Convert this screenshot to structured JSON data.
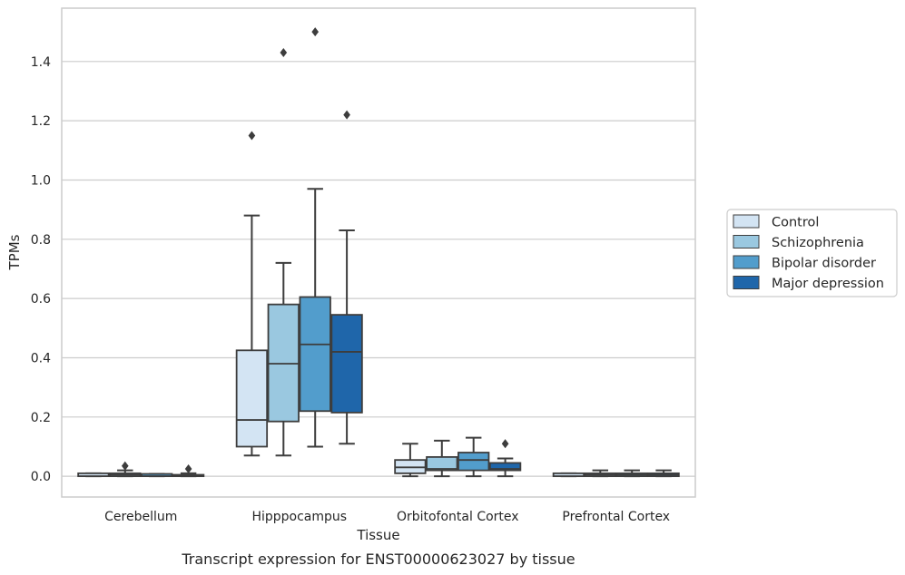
{
  "chart_data": {
    "type": "box",
    "xlabel": "Tissue",
    "ylabel": "TPMs",
    "caption": "Transcript expression for ENST00000623027 by tissue",
    "ylim": [
      -0.07,
      1.58
    ],
    "yticks": [
      0.0,
      0.2,
      0.4,
      0.6,
      0.8,
      1.0,
      1.2,
      1.4
    ],
    "ytick_labels": [
      "0.0",
      "0.2",
      "0.4",
      "0.6",
      "0.8",
      "1.0",
      "1.2",
      "1.4"
    ],
    "grid": "horizontal",
    "legend_placement": "right",
    "categories": [
      "Cerebellum",
      "Hipppocampus",
      "Orbitofontal Cortex",
      "Prefrontal Cortex"
    ],
    "series": [
      {
        "name": "Control",
        "color": "#d3e4f3",
        "boxes": [
          {
            "q1": 0.0,
            "median": 0.0,
            "q3": 0.01,
            "whislo": 0.0,
            "whishi": 0.01,
            "fliers": []
          },
          {
            "q1": 0.1,
            "median": 0.19,
            "q3": 0.425,
            "whislo": 0.07,
            "whishi": 0.88,
            "fliers": [
              1.15
            ]
          },
          {
            "q1": 0.01,
            "median": 0.03,
            "q3": 0.055,
            "whislo": 0.0,
            "whishi": 0.11,
            "fliers": []
          },
          {
            "q1": 0.0,
            "median": 0.0,
            "q3": 0.01,
            "whislo": 0.0,
            "whishi": 0.01,
            "fliers": []
          }
        ]
      },
      {
        "name": "Schizophrenia",
        "color": "#9ac8e0",
        "boxes": [
          {
            "q1": 0.0,
            "median": 0.005,
            "q3": 0.01,
            "whislo": 0.0,
            "whishi": 0.02,
            "fliers": [
              0.035
            ]
          },
          {
            "q1": 0.185,
            "median": 0.38,
            "q3": 0.58,
            "whislo": 0.07,
            "whishi": 0.72,
            "fliers": [
              1.43
            ]
          },
          {
            "q1": 0.02,
            "median": 0.025,
            "q3": 0.065,
            "whislo": 0.0,
            "whishi": 0.12,
            "fliers": []
          },
          {
            "q1": 0.0,
            "median": 0.005,
            "q3": 0.01,
            "whislo": 0.0,
            "whishi": 0.02,
            "fliers": []
          }
        ]
      },
      {
        "name": "Bipolar disorder",
        "color": "#529dcc",
        "boxes": [
          {
            "q1": 0.0,
            "median": 0.0,
            "q3": 0.008,
            "whislo": 0.0,
            "whishi": 0.008,
            "fliers": []
          },
          {
            "q1": 0.22,
            "median": 0.445,
            "q3": 0.605,
            "whislo": 0.1,
            "whishi": 0.97,
            "fliers": [
              1.5
            ]
          },
          {
            "q1": 0.02,
            "median": 0.055,
            "q3": 0.08,
            "whislo": 0.0,
            "whishi": 0.13,
            "fliers": []
          },
          {
            "q1": 0.0,
            "median": 0.005,
            "q3": 0.01,
            "whislo": 0.0,
            "whishi": 0.02,
            "fliers": []
          }
        ]
      },
      {
        "name": "Major depression",
        "color": "#1f66aa",
        "boxes": [
          {
            "q1": 0.0,
            "median": 0.0,
            "q3": 0.005,
            "whislo": 0.0,
            "whishi": 0.01,
            "fliers": [
              0.025
            ]
          },
          {
            "q1": 0.215,
            "median": 0.42,
            "q3": 0.545,
            "whislo": 0.11,
            "whishi": 0.83,
            "fliers": [
              1.22
            ]
          },
          {
            "q1": 0.02,
            "median": 0.025,
            "q3": 0.045,
            "whislo": 0.0,
            "whishi": 0.06,
            "fliers": [
              0.11
            ]
          },
          {
            "q1": 0.0,
            "median": 0.005,
            "q3": 0.01,
            "whislo": 0.0,
            "whishi": 0.02,
            "fliers": []
          }
        ]
      }
    ]
  }
}
